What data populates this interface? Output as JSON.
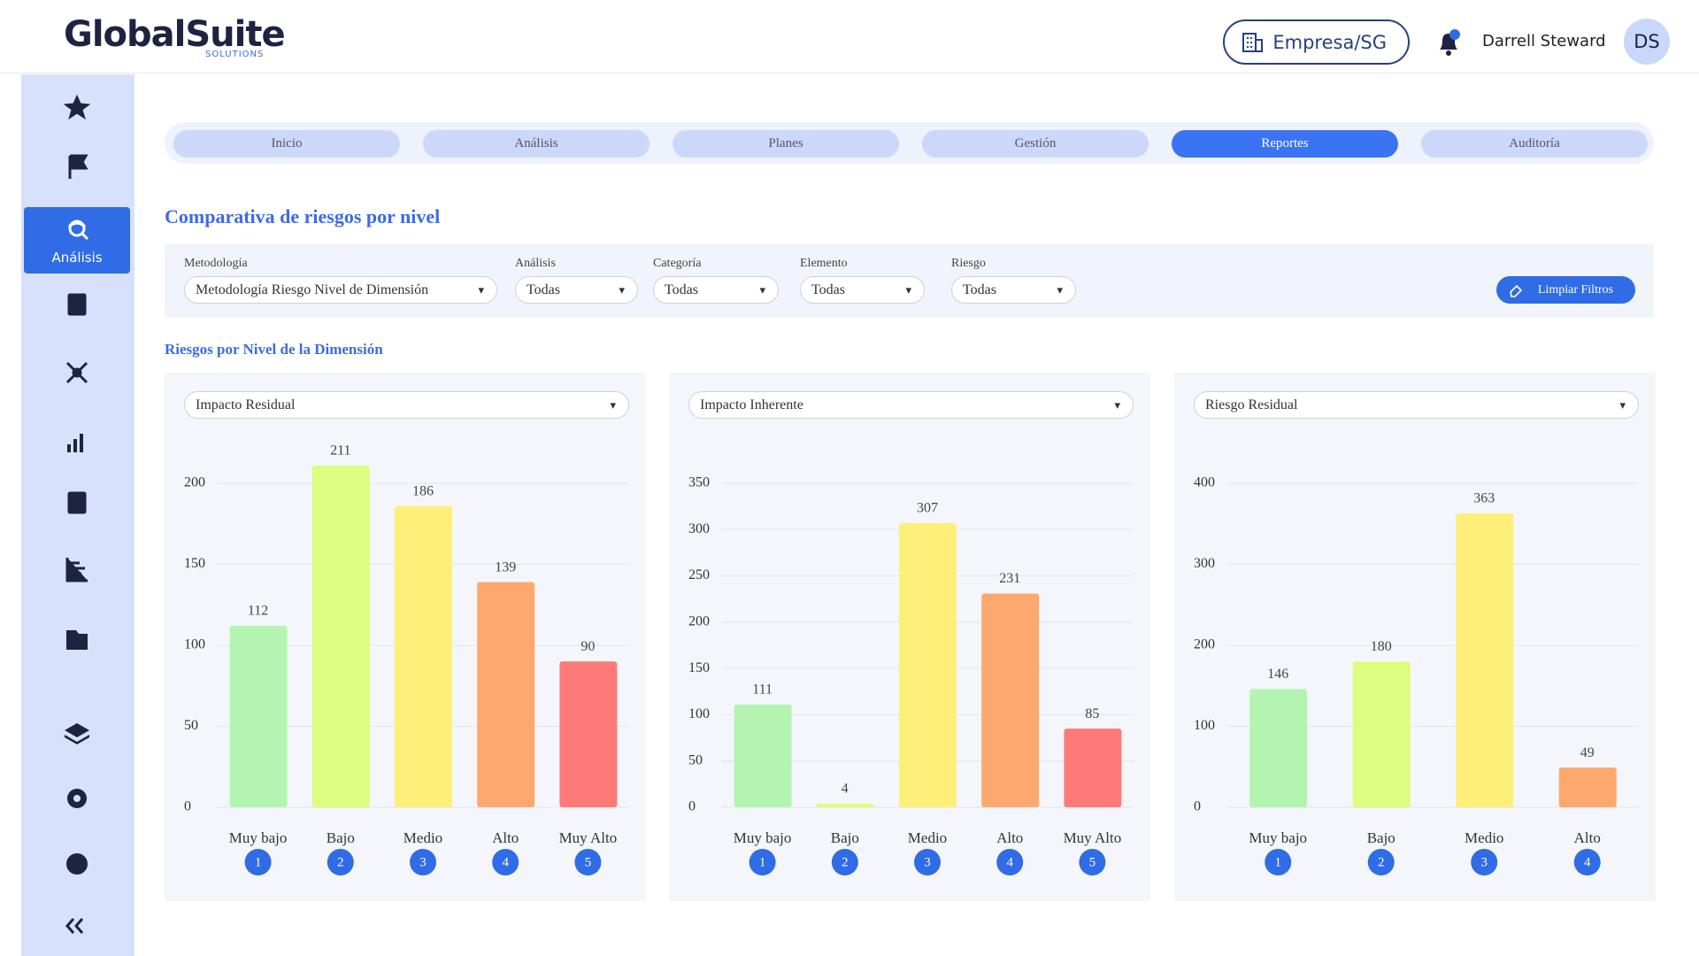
{
  "header": {
    "logo": "GlobalSuite",
    "logo_sub": "SOLUTIONS",
    "company": "Empresa/SG",
    "user": "Darrell Steward",
    "avatar": "DS"
  },
  "sidebar": {
    "active_label": "Análisis"
  },
  "tabs": [
    "Inicio",
    "Análisis",
    "Planes",
    "Gestión",
    "Reportes",
    "Auditoría"
  ],
  "active_tab_index": 4,
  "page_title": "Comparativa de riesgos por nivel",
  "filters": [
    {
      "label": "Metodología",
      "value": "Metodología Riesgo Nivel de Dimensión"
    },
    {
      "label": "Análisis",
      "value": "Todas"
    },
    {
      "label": "Categoría",
      "value": "Todas"
    },
    {
      "label": "Elemento",
      "value": "Todas"
    },
    {
      "label": "Riesgo",
      "value": "Todas"
    }
  ],
  "clear_button": "Limpiar Filtros",
  "section_title": "Riesgos por Nivel de la Dimensión",
  "chart_data": [
    {
      "type": "bar",
      "selector": "Impacto Residual",
      "categories": [
        "Muy bajo",
        "Bajo",
        "Medio",
        "Alto",
        "Muy Alto"
      ],
      "values": [
        112,
        211,
        186,
        139,
        90
      ],
      "colors": [
        "#b3f5b0",
        "#ddfd80",
        "#fdef7a",
        "#fda86e",
        "#fe7a78"
      ],
      "badges": [
        1,
        2,
        3,
        4,
        5
      ],
      "ylim": [
        0,
        200
      ],
      "yticks": [
        0,
        50,
        100,
        150,
        200
      ],
      "grid": true
    },
    {
      "type": "bar",
      "selector": "Impacto Inherente",
      "categories": [
        "Muy bajo",
        "Bajo",
        "Medio",
        "Alto",
        "Muy Alto"
      ],
      "values": [
        111,
        4,
        307,
        231,
        85
      ],
      "colors": [
        "#b3f5b0",
        "#ddfd80",
        "#fdef7a",
        "#fda86e",
        "#fe7a78"
      ],
      "badges": [
        1,
        2,
        3,
        4,
        5
      ],
      "ylim": [
        0,
        350
      ],
      "yticks": [
        0,
        50,
        100,
        150,
        200,
        250,
        300,
        350
      ],
      "grid": true
    },
    {
      "type": "bar",
      "selector": "Riesgo Residual",
      "categories": [
        "Muy bajo",
        "Bajo",
        "Medio",
        "Alto"
      ],
      "values": [
        146,
        180,
        363,
        49
      ],
      "colors": [
        "#b3f5b0",
        "#ddfd80",
        "#fdef7a",
        "#fda86e"
      ],
      "badges": [
        1,
        2,
        3,
        4
      ],
      "ylim": [
        0,
        400
      ],
      "yticks": [
        0,
        100,
        200,
        300,
        400
      ],
      "grid": true
    }
  ]
}
